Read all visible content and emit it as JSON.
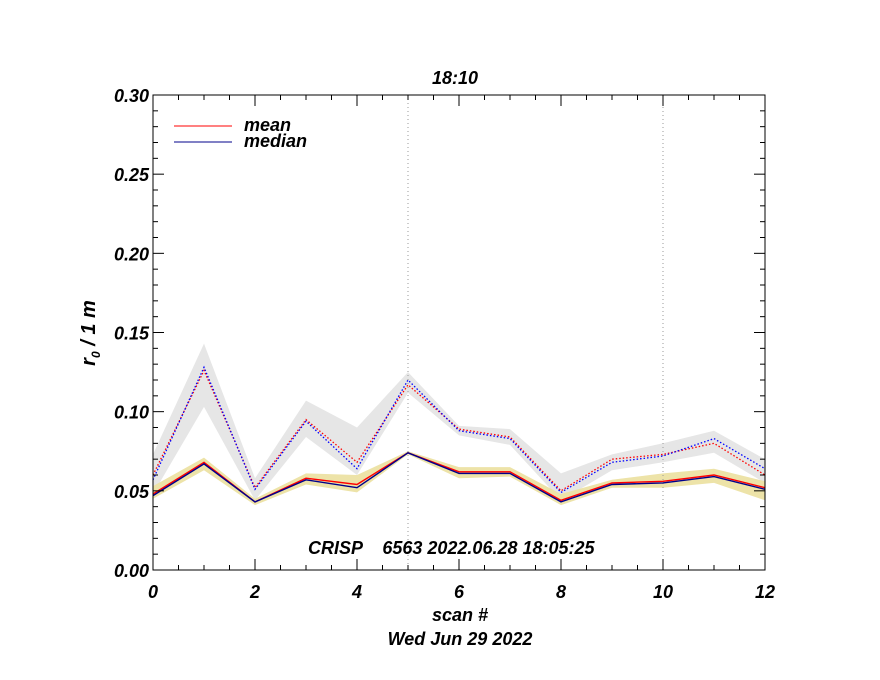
{
  "chart_data": {
    "type": "line",
    "title": "18:10",
    "xlabel": "scan #",
    "ylabel": "r₀ / 1 m",
    "ylabel_main": "r",
    "ylabel_sub": "0",
    "ylabel_rest": " / 1 m",
    "date_label": "Wed Jun 29 2022",
    "annotation": "CRISP    6563 2022.06.28 18:05:25",
    "xlim": [
      0,
      12
    ],
    "ylim": [
      0.0,
      0.3
    ],
    "xticks": [
      0,
      2,
      4,
      6,
      8,
      10,
      12
    ],
    "xtick_labels": [
      "0",
      "2",
      "4",
      "6",
      "8",
      "10",
      "12"
    ],
    "yticks": [
      0.0,
      0.05,
      0.1,
      0.15,
      0.2,
      0.25,
      0.3
    ],
    "ytick_labels": [
      "0.00",
      "0.05",
      "0.10",
      "0.15",
      "0.20",
      "0.25",
      "0.30"
    ],
    "vlines": [
      5,
      10
    ],
    "legend": [
      {
        "label": "mean",
        "color": "#ff0000"
      },
      {
        "label": "median",
        "color": "#00008b"
      }
    ],
    "x": [
      0,
      1,
      2,
      3,
      4,
      5,
      6,
      7,
      8,
      9,
      10,
      11,
      12
    ],
    "series": [
      {
        "name": "mean (lower)",
        "style": "solid",
        "color": "#ff0000",
        "values": [
          0.048,
          0.068,
          0.043,
          0.058,
          0.054,
          0.074,
          0.062,
          0.062,
          0.044,
          0.055,
          0.056,
          0.06,
          0.052
        ]
      },
      {
        "name": "median (lower)",
        "style": "solid",
        "color": "#00008b",
        "values": [
          0.047,
          0.067,
          0.043,
          0.057,
          0.052,
          0.074,
          0.061,
          0.061,
          0.043,
          0.054,
          0.055,
          0.059,
          0.051
        ]
      },
      {
        "name": "mean (upper)",
        "style": "dotted",
        "color": "#ff0000",
        "values": [
          0.06,
          0.126,
          0.052,
          0.095,
          0.068,
          0.117,
          0.089,
          0.084,
          0.05,
          0.07,
          0.073,
          0.08,
          0.06
        ]
      },
      {
        "name": "median (upper)",
        "style": "dotted",
        "color": "#0000ff",
        "values": [
          0.057,
          0.128,
          0.051,
          0.094,
          0.064,
          0.12,
          0.088,
          0.083,
          0.049,
          0.068,
          0.072,
          0.083,
          0.064
        ]
      }
    ],
    "bands": [
      {
        "name": "upper spread",
        "color": "#e6e6e6",
        "lower": [
          0.048,
          0.103,
          0.044,
          0.084,
          0.06,
          0.112,
          0.085,
          0.079,
          0.044,
          0.063,
          0.068,
          0.074,
          0.055
        ],
        "upper": [
          0.073,
          0.143,
          0.058,
          0.107,
          0.09,
          0.125,
          0.091,
          0.089,
          0.061,
          0.073,
          0.08,
          0.088,
          0.07
        ]
      },
      {
        "name": "lower spread",
        "color": "#ede3a8",
        "lower": [
          0.045,
          0.063,
          0.041,
          0.054,
          0.049,
          0.073,
          0.058,
          0.059,
          0.041,
          0.052,
          0.052,
          0.055,
          0.044
        ],
        "upper": [
          0.053,
          0.071,
          0.045,
          0.061,
          0.06,
          0.075,
          0.065,
          0.065,
          0.048,
          0.057,
          0.061,
          0.064,
          0.056
        ]
      }
    ]
  }
}
